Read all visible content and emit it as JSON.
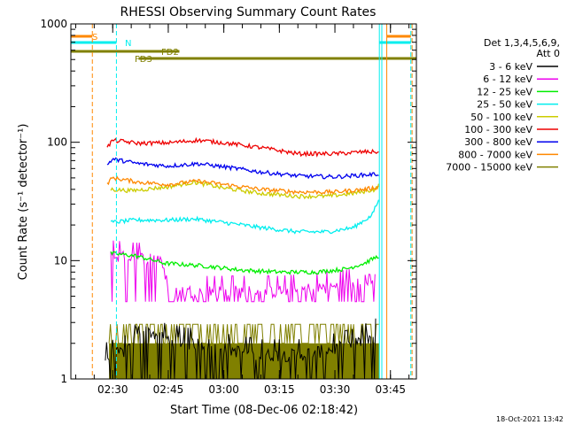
{
  "chart_data": {
    "type": "line",
    "title": "RHESSI Observing Summary Count Rates",
    "xlabel": "Start Time (08-Dec-06 02:18:42)",
    "ylabel": "Count Rate (s⁻¹ detector⁻¹)",
    "ylog": true,
    "ylim": [
      1,
      1000
    ],
    "xlim": [
      "02:18:42",
      "03:52:00"
    ],
    "x_ticks": [
      "02:30",
      "02:45",
      "03:00",
      "03:15",
      "03:30",
      "03:45"
    ],
    "y_ticks": [
      "1",
      "10",
      "100",
      "1000"
    ],
    "timestamp": "18-Oct-2021 13:42",
    "legend": {
      "position": "right",
      "header": [
        "Det 1,3,4,5,6,9,",
        "Att 0"
      ],
      "entries": [
        {
          "label": "3 - 6 keV",
          "color": "#000000"
        },
        {
          "label": "6 - 12 keV",
          "color": "#ee00ee"
        },
        {
          "label": "12 - 25 keV",
          "color": "#00ee00"
        },
        {
          "label": "25 - 50 keV",
          "color": "#00eeee"
        },
        {
          "label": "50 - 100 keV",
          "color": "#cccc00"
        },
        {
          "label": "100 - 300 keV",
          "color": "#ee0000"
        },
        {
          "label": "300 - 800 keV",
          "color": "#0000ee"
        },
        {
          "label": "800 - 7000 keV",
          "color": "#ff8800"
        },
        {
          "label": "7000 - 15000 keV",
          "color": "#808000"
        }
      ]
    },
    "state_bars": [
      {
        "label": "S",
        "color": "#ff8800",
        "segments": [
          [
            "02:18:42",
            "02:24:30"
          ],
          [
            "03:44:00",
            "03:50:30"
          ]
        ]
      },
      {
        "label": "N",
        "color": "#00eeee",
        "segments": [
          [
            "02:18:42",
            "02:31:00"
          ],
          [
            "03:42:00",
            "03:50:30"
          ]
        ]
      },
      {
        "label": "FD2",
        "color": "#808000",
        "segments": [
          [
            "02:18:42",
            "02:48:00"
          ]
        ]
      },
      {
        "label": "FD3",
        "color": "#808000",
        "segments": [
          [
            "02:37:00",
            "03:52:00"
          ]
        ]
      }
    ],
    "vertical_lines": [
      {
        "time": "02:24:30",
        "color": "#ff8800",
        "style": "dashed"
      },
      {
        "time": "02:31:00",
        "color": "#00eeee",
        "style": "dashed"
      },
      {
        "time": "03:42:00",
        "color": "#00eeee",
        "style": "solid"
      },
      {
        "time": "03:42:40",
        "color": "#00eeee",
        "style": "solid"
      },
      {
        "time": "03:44:00",
        "color": "#ff8800",
        "style": "solid"
      },
      {
        "time": "03:50:30",
        "color": "#00eeee",
        "style": "dashed"
      },
      {
        "time": "03:50:50",
        "color": "#ff8800",
        "style": "dashed"
      },
      {
        "time": "02:18:42",
        "color": "#00eeee",
        "style": "solid"
      }
    ],
    "series": [
      {
        "name": "3 - 6 keV",
        "color": "#000000",
        "kind": "noisy",
        "t": [
          "02:28:00",
          "02:35:00",
          "02:36:00",
          "02:40:00",
          "02:44:00",
          "02:50:00",
          "02:55:00",
          "03:00:00",
          "03:10:00",
          "03:20:00",
          "03:30:00",
          "03:36:00",
          "03:41:00"
        ],
        "y": [
          1.5,
          1.8,
          2.6,
          2.5,
          2.2,
          2.0,
          2.0,
          1.8,
          1.6,
          1.6,
          1.8,
          2.0,
          2.4
        ],
        "ylow": 1
      },
      {
        "name": "6 - 12 keV",
        "color": "#ee00ee",
        "kind": "noisy",
        "t": [
          "02:29:30",
          "02:36:00",
          "02:43:00",
          "02:45:00",
          "03:00:00",
          "03:15:00",
          "03:30:00",
          "03:37:00",
          "03:41:00"
        ],
        "y": [
          11,
          10.5,
          10.5,
          5.5,
          5.5,
          5.5,
          6.0,
          6.5,
          7.5
        ],
        "ylow": 4.5
      },
      {
        "name": "12 - 25 keV",
        "color": "#00ee00",
        "kind": "line",
        "t": [
          "02:29:30",
          "02:36:00",
          "02:44:00",
          "02:55:00",
          "03:05:00",
          "03:15:00",
          "03:25:00",
          "03:33:00",
          "03:38:00",
          "03:42:00"
        ],
        "y": [
          11.5,
          11,
          9.5,
          9.0,
          8.3,
          8.0,
          8.0,
          8.5,
          9.5,
          11
        ]
      },
      {
        "name": "25 - 50 keV",
        "color": "#00eeee",
        "kind": "line",
        "t": [
          "02:29:30",
          "02:36:00",
          "02:45:00",
          "02:52:00",
          "03:00:00",
          "03:10:00",
          "03:20:00",
          "03:28:00",
          "03:35:00",
          "03:40:00",
          "03:42:00"
        ],
        "y": [
          21,
          22,
          22,
          22.5,
          21,
          19,
          17.5,
          17.5,
          19,
          24,
          33
        ]
      },
      {
        "name": "50 - 100 keV",
        "color": "#cccc00",
        "kind": "line",
        "t": [
          "02:29:30",
          "02:35:00",
          "02:45:00",
          "02:52:00",
          "03:00:00",
          "03:10:00",
          "03:20:00",
          "03:28:00",
          "03:35:00",
          "03:41:00",
          "03:42:00"
        ],
        "y": [
          40,
          39,
          42,
          46,
          41,
          37,
          35,
          35,
          37,
          40,
          44
        ]
      },
      {
        "name": "100 - 300 keV",
        "color": "#ee0000",
        "kind": "line",
        "t": [
          "02:28:30",
          "02:30:00",
          "02:37:00",
          "02:45:00",
          "02:53:00",
          "03:00:00",
          "03:10:00",
          "03:20:00",
          "03:30:00",
          "03:38:00",
          "03:42:00"
        ],
        "y": [
          90,
          104,
          98,
          99,
          104,
          99,
          90,
          80,
          80,
          83,
          83
        ]
      },
      {
        "name": "300 - 800 keV",
        "color": "#0000ee",
        "kind": "line",
        "t": [
          "02:28:30",
          "02:30:00",
          "02:37:00",
          "02:45:00",
          "02:53:00",
          "03:00:00",
          "03:10:00",
          "03:20:00",
          "03:30:00",
          "03:38:00",
          "03:42:00"
        ],
        "y": [
          65,
          72,
          66,
          63,
          66,
          62,
          56,
          52,
          51,
          53,
          54
        ]
      },
      {
        "name": "800 - 7000 keV",
        "color": "#ff8800",
        "kind": "line",
        "t": [
          "02:28:30",
          "02:30:00",
          "02:37:00",
          "02:45:00",
          "02:53:00",
          "03:00:00",
          "03:10:00",
          "03:20:00",
          "03:30:00",
          "03:38:00",
          "03:42:00"
        ],
        "y": [
          45,
          50,
          46,
          44,
          47,
          44,
          40,
          38,
          38,
          40,
          42
        ]
      },
      {
        "name": "7000 - 15000 keV",
        "color": "#808000",
        "kind": "band",
        "t": [
          "02:29:00",
          "03:42:00"
        ],
        "y": [
          2.9,
          2.9
        ],
        "ylow": 1.0,
        "alt": 2.0
      }
    ]
  }
}
